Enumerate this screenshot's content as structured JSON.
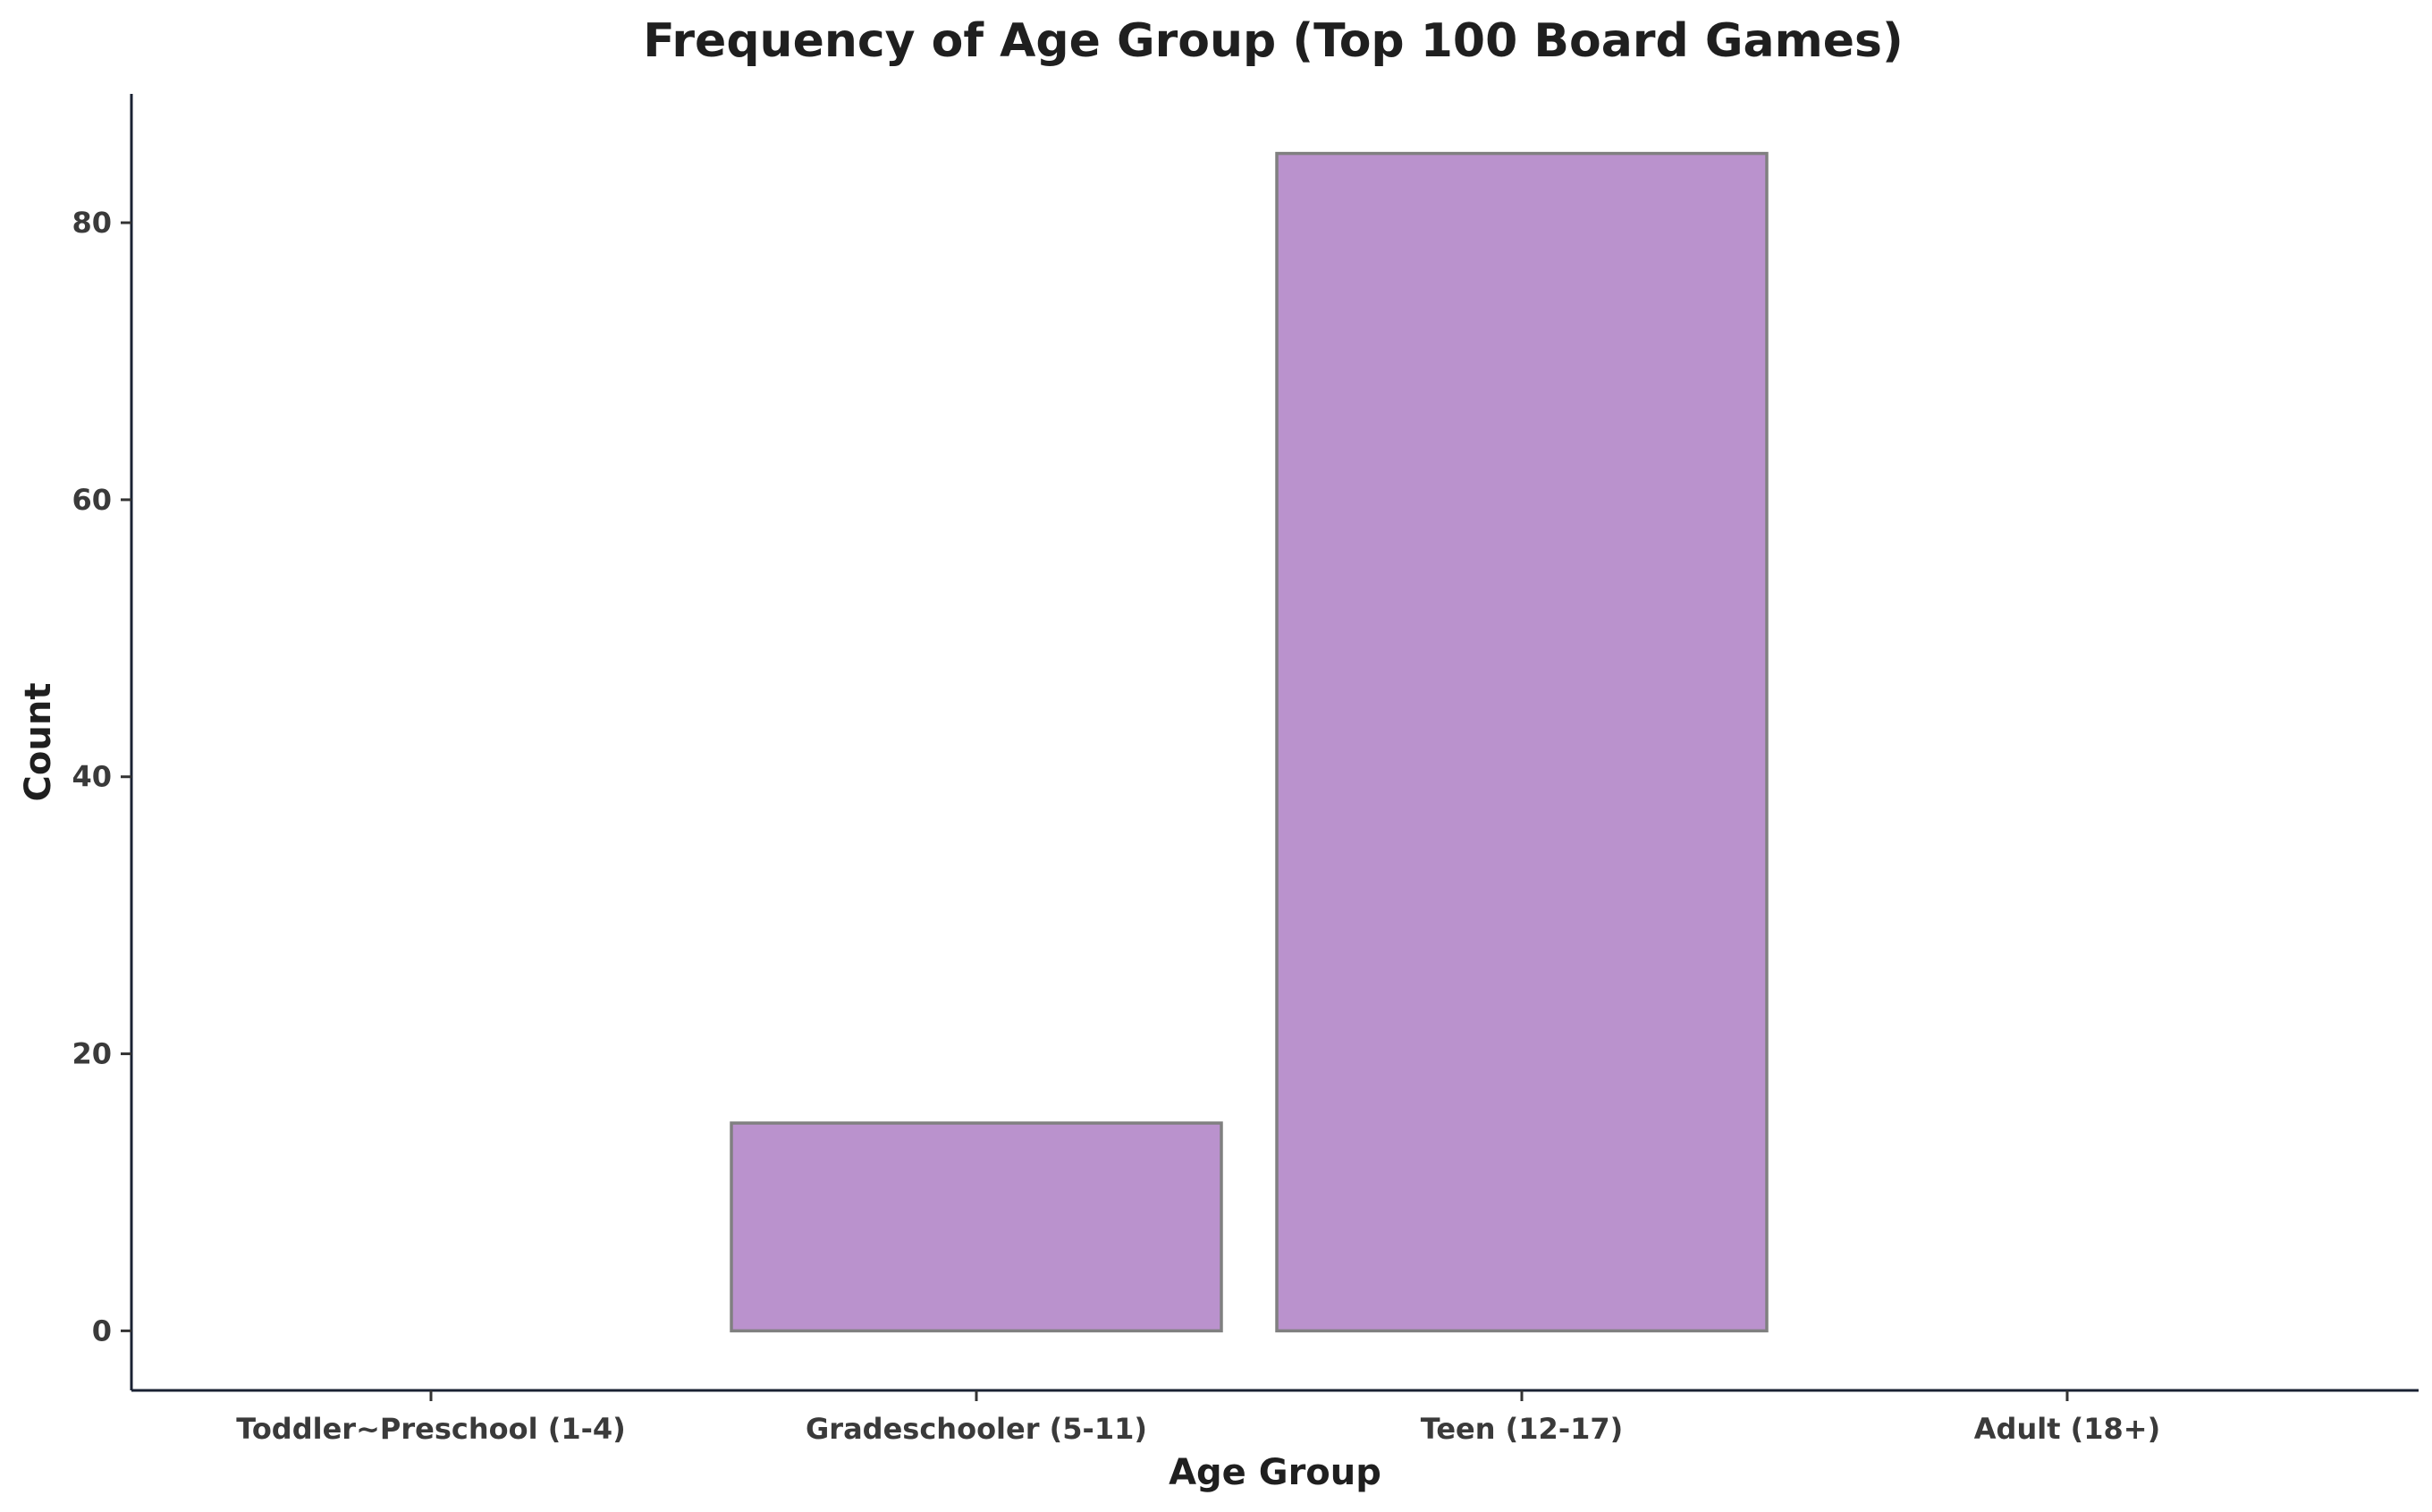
{
  "chart_data": {
    "type": "bar",
    "title": "Frequency of Age Group (Top 100 Board Games)",
    "xlabel": "Age Group",
    "ylabel": "Count",
    "categories": [
      "Toddler~Preschool (1-4)",
      "Gradeschooler (5-11)",
      "Teen (12-17)",
      "Adult (18+)"
    ],
    "values": [
      0,
      15,
      85,
      0
    ],
    "ylim": [
      -4.3,
      89.3
    ],
    "yticks": [
      0,
      20,
      40,
      60,
      80
    ],
    "grid": false,
    "legend": "none",
    "colors": {
      "bar_fill": "#ba92cd",
      "bar_stroke": "#808080",
      "axis": "#1a2233",
      "text": "#333333"
    }
  }
}
